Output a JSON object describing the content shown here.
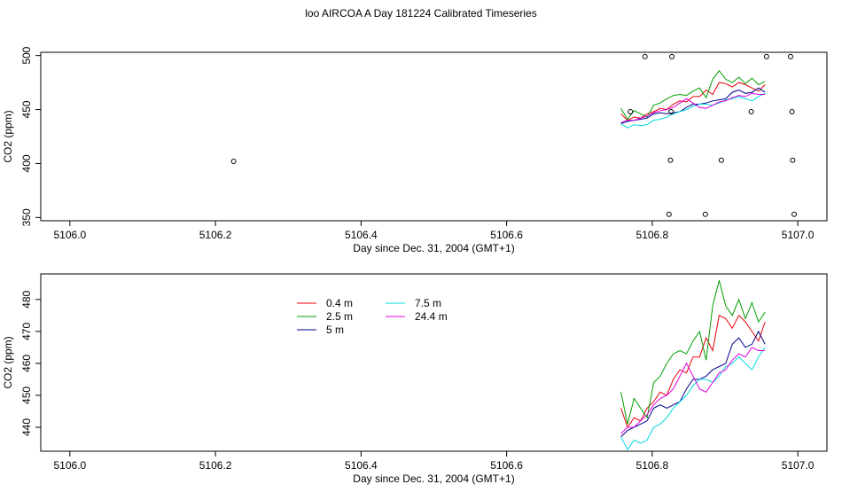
{
  "title": "loo AIRCOA A  Day 181224  Calibrated Timeseries",
  "chart_data": [
    {
      "type": "scatter",
      "xlabel": "Day since Dec. 31, 2004 (GMT+1)",
      "ylabel": "CO2 (ppm)",
      "xlim": [
        5105.96,
        5107.04
      ],
      "ylim": [
        347,
        503
      ],
      "xticks": [
        "5106.0",
        "5106.2",
        "5106.4",
        "5106.6",
        "5106.8",
        "5107.0"
      ],
      "yticks": [
        "350",
        "400",
        "450",
        "500"
      ],
      "points": [
        {
          "x": 5106.225,
          "y": 402
        },
        {
          "x": 5106.77,
          "y": 448
        },
        {
          "x": 5106.79,
          "y": 499
        },
        {
          "x": 5106.823,
          "y": 353
        },
        {
          "x": 5106.825,
          "y": 403
        },
        {
          "x": 5106.826,
          "y": 448
        },
        {
          "x": 5106.827,
          "y": 499
        },
        {
          "x": 5106.873,
          "y": 353
        },
        {
          "x": 5106.895,
          "y": 403
        },
        {
          "x": 5106.936,
          "y": 448
        },
        {
          "x": 5106.957,
          "y": 499
        },
        {
          "x": 5106.99,
          "y": 499
        },
        {
          "x": 5106.992,
          "y": 448
        },
        {
          "x": 5106.993,
          "y": 403
        },
        {
          "x": 5106.995,
          "y": 353
        }
      ],
      "series_ref": "shared_series"
    },
    {
      "type": "line",
      "xlabel": "Day since Dec. 31, 2004 (GMT+1)",
      "ylabel": "CO2 (ppm)",
      "xlim": [
        5105.96,
        5107.04
      ],
      "ylim": [
        432.5,
        488
      ],
      "xticks": [
        "5106.0",
        "5106.2",
        "5106.4",
        "5106.6",
        "5106.8",
        "5107.0"
      ],
      "yticks": [
        "440",
        "450",
        "460",
        "470",
        "480"
      ],
      "legend_placement": "top-center",
      "series_ref": "shared_series"
    }
  ],
  "shared_series": {
    "x": [
      5106.757,
      5106.766,
      5106.775,
      5106.784,
      5106.793,
      5106.802,
      5106.811,
      5106.82,
      5106.829,
      5106.838,
      5106.847,
      5106.856,
      5106.865,
      5106.874,
      5106.883,
      5106.892,
      5106.901,
      5106.91,
      5106.919,
      5106.928,
      5106.937,
      5106.946,
      5106.955
    ],
    "series": [
      {
        "name": "0.4 m",
        "color": "#e8000b",
        "values": [
          446,
          440,
          443,
          442,
          446,
          448,
          451,
          450,
          455,
          458,
          457,
          462,
          462,
          468,
          464,
          475,
          474,
          471,
          475,
          473,
          470,
          467,
          473
        ]
      },
      {
        "name": "2.5 m",
        "color": "#00a000",
        "values": [
          451,
          441,
          449,
          446,
          443,
          454,
          456,
          460,
          463,
          464,
          463,
          467,
          470,
          461,
          478,
          486,
          478,
          475,
          480,
          474,
          479,
          473,
          476
        ]
      },
      {
        "name": "5 m",
        "color": "#00008b",
        "values": [
          437,
          439,
          440,
          441,
          442,
          446,
          447,
          446,
          447,
          448,
          452,
          455,
          455,
          456,
          458,
          459,
          460,
          466,
          468,
          465,
          466,
          470,
          466
        ]
      },
      {
        "name": "7.5 m",
        "color": "#00d8e0",
        "values": [
          437,
          433,
          436,
          435,
          436,
          440,
          441,
          443,
          446,
          448,
          450,
          453,
          455,
          455,
          454,
          456,
          459,
          460,
          462,
          460,
          458,
          462,
          465
        ]
      },
      {
        "name": "24.4 m",
        "color": "#e000e0",
        "values": [
          438,
          440,
          440,
          442,
          444,
          447,
          449,
          450,
          452,
          456,
          460,
          456,
          452,
          451,
          454,
          457,
          458,
          461,
          463,
          462,
          465,
          464,
          464
        ]
      }
    ]
  }
}
